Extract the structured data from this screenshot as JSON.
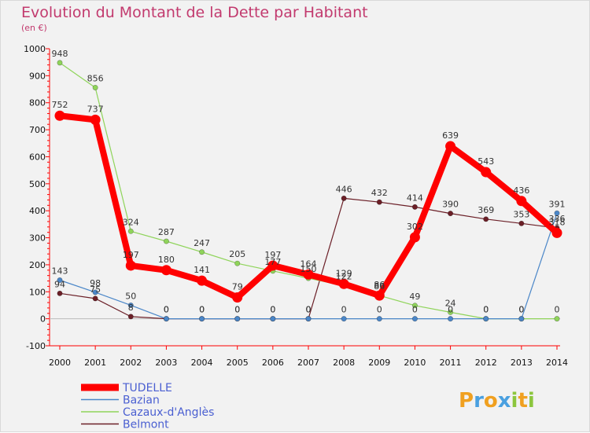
{
  "chart_data": {
    "type": "line",
    "title": "Evolution du Montant de la Dette par Habitant",
    "subtitle": "(en €)",
    "xlabel": "",
    "ylabel": "",
    "x": [
      "2000",
      "2001",
      "2002",
      "2003",
      "2004",
      "2005",
      "2006",
      "2007",
      "2008",
      "2009",
      "2010",
      "2011",
      "2012",
      "2013",
      "2014"
    ],
    "ylim": [
      -100,
      1000
    ],
    "yticks": [
      -100,
      0,
      100,
      200,
      300,
      400,
      500,
      600,
      700,
      800,
      900,
      1000
    ],
    "grid": false,
    "legend_position": "bottom-left",
    "series": [
      {
        "name": "Belmont",
        "color": "#6b1f27",
        "width": 1.2,
        "marker": 3.2,
        "values": [
          94,
          75,
          8,
          0,
          0,
          0,
          0,
          0,
          446,
          432,
          414,
          390,
          369,
          353,
          336
        ]
      },
      {
        "name": "Cazaux-d'Anglès",
        "color": "#8fd45a",
        "width": 1.2,
        "marker": 3.2,
        "values": [
          948,
          856,
          324,
          287,
          247,
          205,
          177,
          150,
          122,
          86,
          49,
          24,
          0,
          0,
          0
        ]
      },
      {
        "name": "Bazian",
        "color": "#4a86c8",
        "width": 1.2,
        "marker": 3.2,
        "values": [
          143,
          98,
          50,
          0,
          0,
          0,
          0,
          0,
          0,
          0,
          0,
          0,
          0,
          0,
          391
        ]
      },
      {
        "name": "TUDELLE",
        "color": "#ff0000",
        "width": 8,
        "marker": 6.5,
        "values": [
          752,
          737,
          197,
          180,
          141,
          79,
          197,
          164,
          129,
          86,
          302,
          639,
          543,
          436,
          318
        ]
      }
    ],
    "legend_order": [
      "TUDELLE",
      "Bazian",
      "Cazaux-d'Anglès",
      "Belmont"
    ]
  },
  "brand": {
    "letters": [
      "P",
      "r",
      "o",
      "x",
      "i",
      "t",
      "i"
    ],
    "colors": [
      "#f0a020",
      "#4aa0e0",
      "#f0a020",
      "#4aa0e0",
      "#8cc63e",
      "#f0a020",
      "#8cc63e"
    ]
  }
}
